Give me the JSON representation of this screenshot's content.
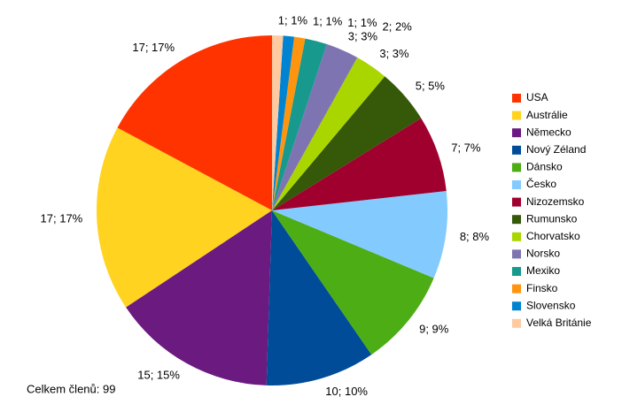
{
  "chart_data": {
    "type": "pie",
    "categories": [
      "USA",
      "Austrálie",
      "Německo",
      "Nový Zéland",
      "Dánsko",
      "Česko",
      "Nizozemsko",
      "Rumunsko",
      "Chorvatsko",
      "Norsko",
      "Mexiko",
      "Finsko",
      "Slovensko",
      "Velká Británie"
    ],
    "values": [
      17,
      17,
      15,
      10,
      9,
      8,
      7,
      5,
      3,
      3,
      2,
      1,
      1,
      1
    ],
    "value_labels": [
      "17; 17%",
      "17; 17%",
      "15; 15%",
      "10; 10%",
      "9; 9%",
      "8; 8%",
      "7; 7%",
      "5; 5%",
      "3; 3%",
      "3; 3%",
      "2; 2%",
      "1; 1%",
      "1; 1%",
      "1; 1%"
    ],
    "colors": [
      "#ff3300",
      "#ffd320",
      "#6b1a80",
      "#004c98",
      "#4cae14",
      "#83caff",
      "#a0002e",
      "#355809",
      "#aad600",
      "#7e74b2",
      "#17998e",
      "#ff950e",
      "#0084d1",
      "#ffcaa0"
    ],
    "legend": "right",
    "footnote": "Celkem členů: 99"
  }
}
